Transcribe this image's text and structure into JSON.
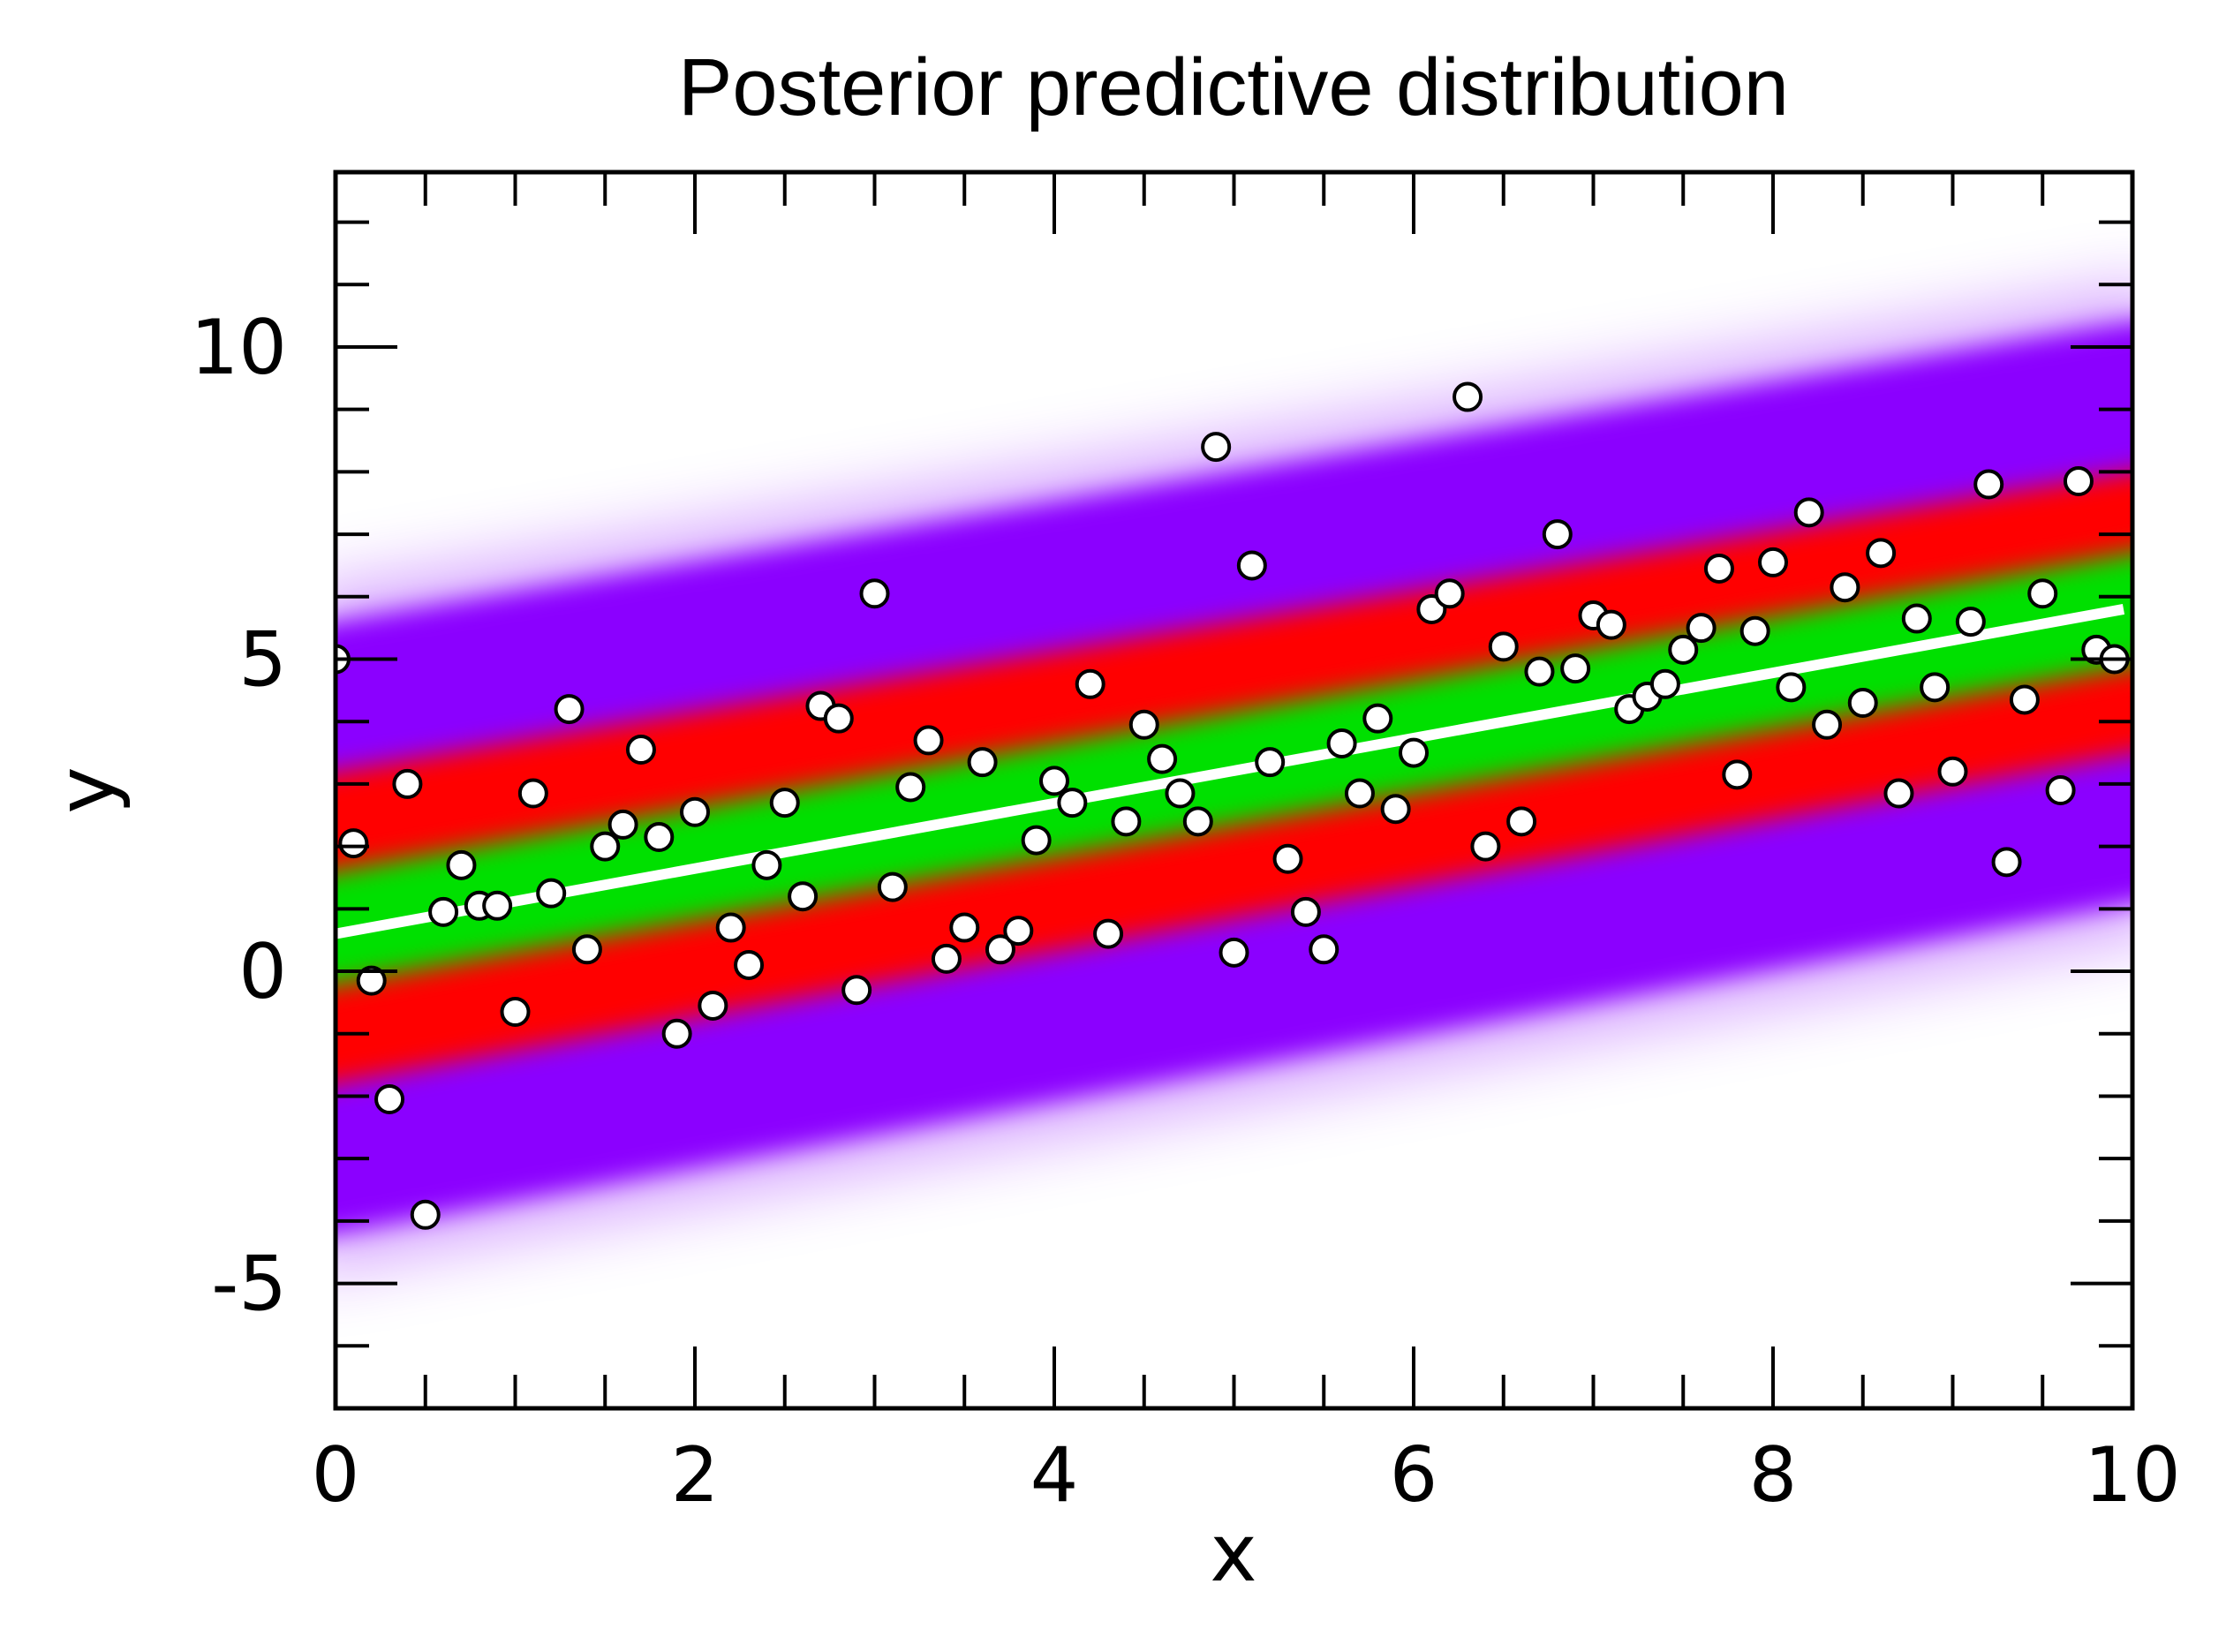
{
  "chart_data": {
    "type": "scatter",
    "title": "Posterior predictive distribution",
    "xlabel": "x",
    "ylabel": "y",
    "xlim": [
      0,
      10
    ],
    "ylim": [
      -7,
      12.8
    ],
    "x_ticks": [
      0,
      2,
      4,
      6,
      8,
      10
    ],
    "x_tick_labels": [
      "0",
      "2",
      "4",
      "6",
      "8",
      "10"
    ],
    "y_ticks": [
      -5,
      0,
      5,
      10
    ],
    "y_tick_labels": [
      "-5",
      "0",
      "5",
      "10"
    ],
    "grid": false,
    "legend": "none",
    "fit_line": {
      "x": [
        0,
        10
      ],
      "y": [
        0.6,
        5.8
      ],
      "color": "#ffffff"
    },
    "predictive_bands": [
      {
        "level": "outer",
        "color": "#8b00ff",
        "y_at_x0": [
          -4.3,
          5.5
        ],
        "y_at_x10": [
          1.2,
          10.5
        ]
      },
      {
        "level": "middle",
        "color": "#ff0000",
        "y_at_x0": [
          -1.9,
          3.1
        ],
        "y_at_x10": [
          3.6,
          8.1
        ]
      },
      {
        "level": "inner",
        "color": "#00e000",
        "y_at_x0": [
          -0.3,
          1.5
        ],
        "y_at_x10": [
          5.0,
          6.8
        ]
      }
    ],
    "series": [
      {
        "marker": "circle",
        "color": "#ffffff",
        "edge_color": "#000000",
        "x": [
          0.0,
          0.1,
          0.2,
          0.3,
          0.4,
          0.5,
          0.6,
          0.7,
          0.8,
          0.9,
          1.0,
          1.1,
          1.2,
          1.3,
          1.4,
          1.5,
          1.6,
          1.7,
          1.8,
          1.9,
          2.0,
          2.1,
          2.2,
          2.3,
          2.4,
          2.5,
          2.6,
          2.7,
          2.8,
          2.9,
          3.0,
          3.1,
          3.2,
          3.3,
          3.4,
          3.5,
          3.6,
          3.7,
          3.8,
          3.9,
          4.0,
          4.1,
          4.2,
          4.3,
          4.4,
          4.5,
          4.6,
          4.7,
          4.8,
          4.9,
          5.0,
          5.1,
          5.2,
          5.3,
          5.4,
          5.5,
          5.6,
          5.7,
          5.8,
          5.9,
          6.0,
          6.1,
          6.2,
          6.3,
          6.4,
          6.5,
          6.6,
          6.7,
          6.8,
          6.9,
          7.0,
          7.1,
          7.2,
          7.3,
          7.4,
          7.5,
          7.6,
          7.7,
          7.8,
          7.9,
          8.0,
          8.1,
          8.2,
          8.3,
          8.4,
          8.5,
          8.6,
          8.7,
          8.8,
          8.9,
          9.0,
          9.1,
          9.2,
          9.3,
          9.4,
          9.5,
          9.6,
          9.7,
          9.8,
          9.9
        ],
        "y": [
          5.0,
          2.05,
          -0.15,
          -2.05,
          3.0,
          -3.9,
          0.95,
          1.7,
          1.05,
          1.05,
          -0.65,
          2.85,
          1.25,
          4.2,
          0.35,
          2.0,
          2.35,
          3.55,
          2.15,
          -1.0,
          2.55,
          -0.55,
          0.7,
          0.1,
          1.7,
          2.7,
          1.2,
          4.25,
          4.05,
          -0.3,
          6.05,
          1.35,
          2.95,
          3.7,
          0.2,
          0.7,
          3.35,
          0.35,
          0.65,
          2.1,
          3.05,
          2.7,
          4.6,
          0.6,
          2.4,
          3.95,
          3.4,
          2.85,
          2.4,
          8.4,
          0.3,
          6.5,
          3.35,
          1.8,
          0.95,
          0.35,
          3.65,
          2.85,
          4.05,
          2.6,
          3.5,
          5.8,
          6.05,
          9.2,
          2.0,
          5.2,
          2.4,
          4.8,
          7.0,
          4.85,
          5.7,
          5.55,
          4.2,
          4.4,
          4.6,
          5.15,
          5.5,
          6.45,
          3.15,
          5.45,
          6.55,
          4.55,
          7.35,
          3.95,
          6.15,
          4.3,
          6.7,
          2.85,
          5.65,
          4.55,
          3.2,
          5.6,
          7.8,
          1.75,
          4.35,
          6.05,
          2.9,
          7.85,
          5.15,
          5.0
        ]
      }
    ]
  }
}
